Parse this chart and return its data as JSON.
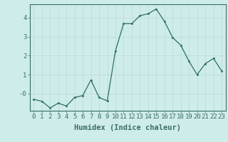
{
  "x": [
    0,
    1,
    2,
    3,
    4,
    5,
    6,
    7,
    8,
    9,
    10,
    11,
    12,
    13,
    14,
    15,
    16,
    17,
    18,
    19,
    20,
    21,
    22,
    23
  ],
  "y": [
    -0.3,
    -0.4,
    -0.75,
    -0.5,
    -0.65,
    -0.2,
    -0.1,
    0.72,
    -0.2,
    -0.38,
    2.25,
    3.68,
    3.68,
    4.1,
    4.2,
    4.45,
    3.8,
    2.95,
    2.55,
    1.7,
    1.0,
    1.58,
    1.85,
    1.2
  ],
  "xlabel": "Humidex (Indice chaleur)",
  "line_color": "#2d6e63",
  "marker_color": "#2d6e63",
  "bg_color": "#ceecea",
  "grid_color": "#b8dbd8",
  "axis_color": "#3a6e65",
  "ylim": [
    -0.9,
    4.7
  ],
  "xlim": [
    -0.5,
    23.5
  ],
  "yticks": [
    0,
    1,
    2,
    3,
    4
  ],
  "ytick_labels": [
    "-0",
    "1",
    "2",
    "3",
    "4"
  ],
  "xticks": [
    0,
    1,
    2,
    3,
    4,
    5,
    6,
    7,
    8,
    9,
    10,
    11,
    12,
    13,
    14,
    15,
    16,
    17,
    18,
    19,
    20,
    21,
    22,
    23
  ],
  "xlabel_fontsize": 7.5,
  "tick_fontsize": 6.5
}
